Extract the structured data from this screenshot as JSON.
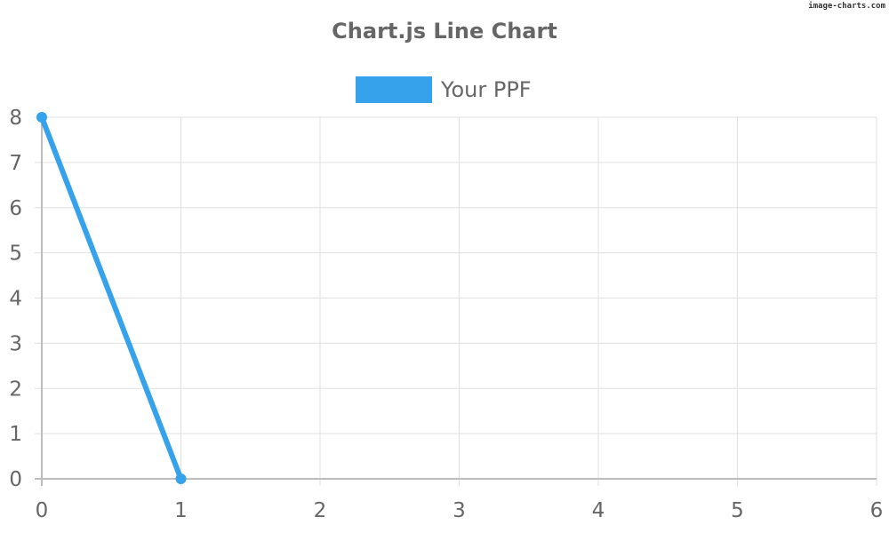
{
  "watermark": "image-charts.com",
  "chart_data": {
    "type": "line",
    "title": "Chart.js Line Chart",
    "xlabel": "",
    "ylabel": "",
    "xlim": [
      0,
      6
    ],
    "ylim": [
      0,
      8
    ],
    "x_ticks": [
      "0",
      "1",
      "2",
      "3",
      "4",
      "5",
      "6"
    ],
    "y_ticks": [
      "0",
      "1",
      "2",
      "3",
      "4",
      "5",
      "6",
      "7",
      "8"
    ],
    "grid": true,
    "legend_position": "top",
    "series": [
      {
        "name": "Your PPF",
        "color": "#36a2eb",
        "points": [
          {
            "x": 0,
            "y": 8
          },
          {
            "x": 1,
            "y": 0
          }
        ]
      }
    ]
  }
}
